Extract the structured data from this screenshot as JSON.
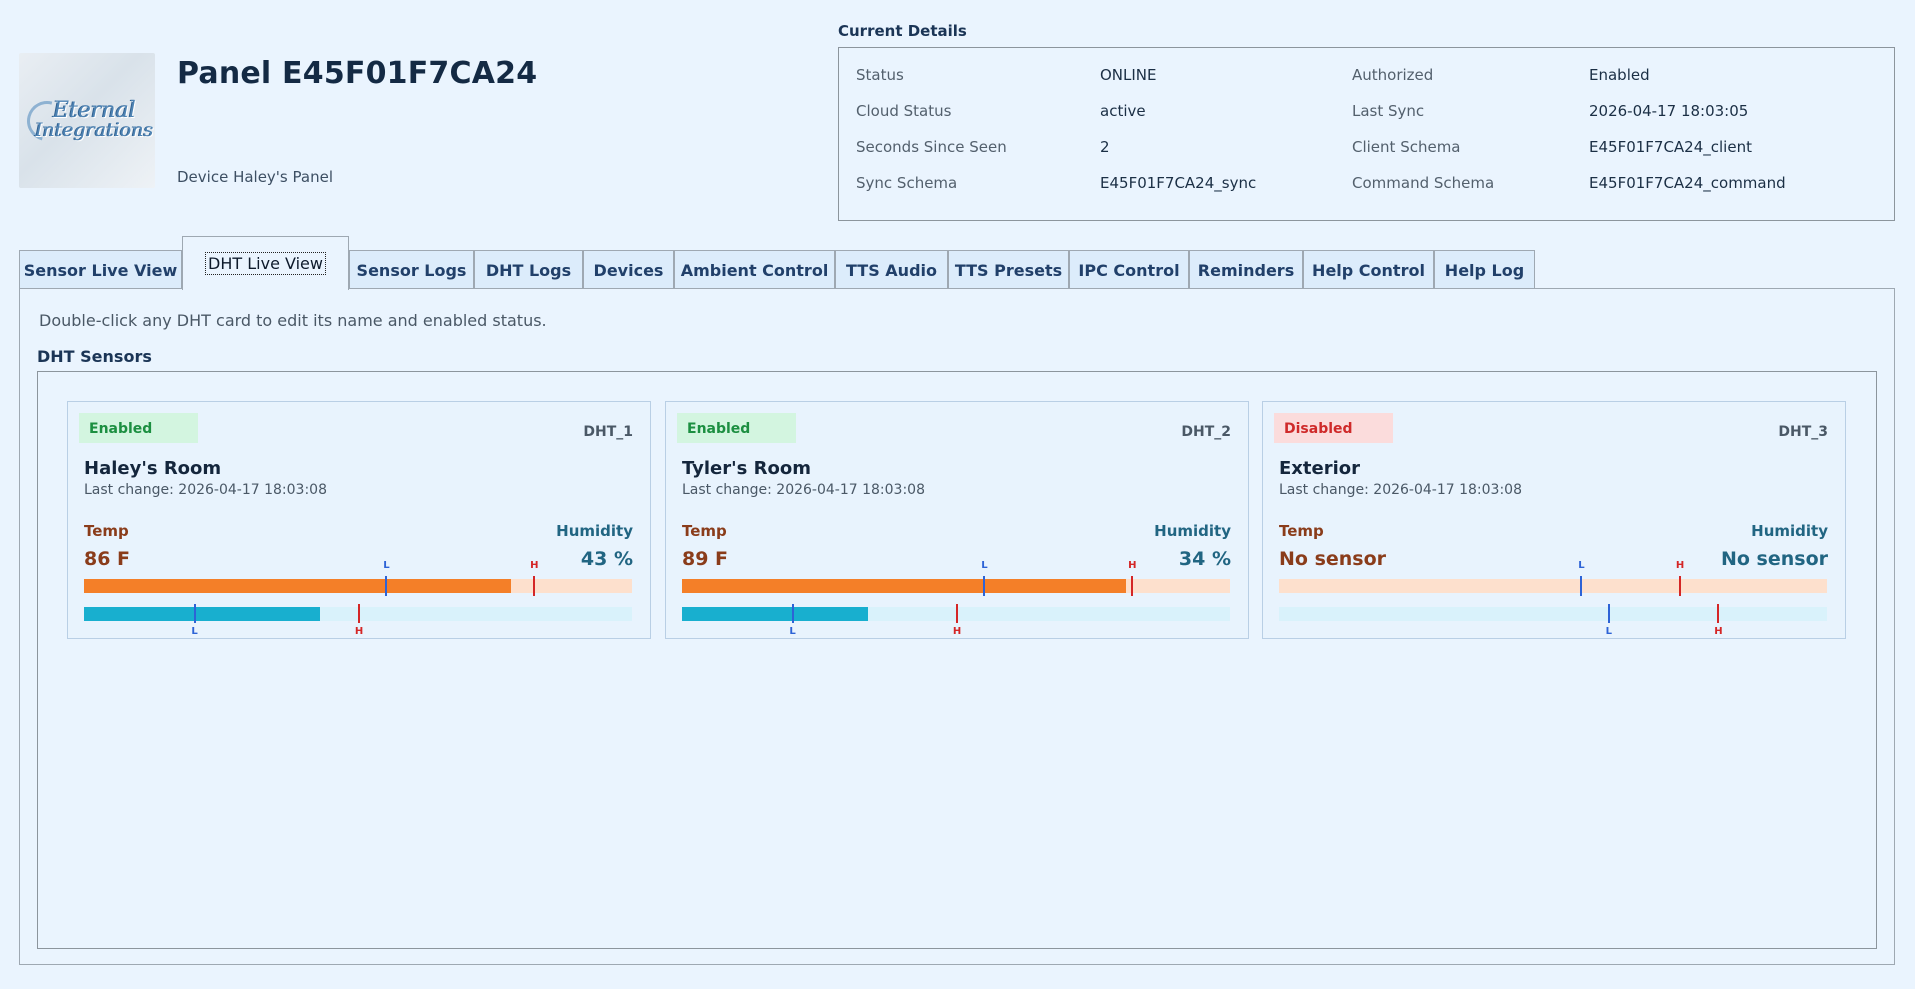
{
  "logo": {
    "line1": "Eternal",
    "line2": "Integrations"
  },
  "panel": {
    "title": "Panel E45F01F7CA24",
    "subtitle": "Device Haley's Panel"
  },
  "details": {
    "legend": "Current Details",
    "rows": [
      {
        "label": "Status",
        "value": "ONLINE",
        "label2": "Authorized",
        "value2": "Enabled"
      },
      {
        "label": "Cloud Status",
        "value": "active",
        "label2": "Last Sync",
        "value2": "2026-04-17 18:03:05"
      },
      {
        "label": "Seconds Since Seen",
        "value": "2",
        "label2": "Client Schema",
        "value2": "E45F01F7CA24_client"
      },
      {
        "label": "Sync Schema",
        "value": "E45F01F7CA24_sync",
        "label2": "Command Schema",
        "value2": "E45F01F7CA24_command"
      }
    ]
  },
  "tabs": [
    "Sensor Live View",
    "DHT Live View",
    "Sensor Logs",
    "DHT Logs",
    "Devices",
    "Ambient Control",
    "TTS Audio",
    "TTS Presets",
    "IPC Control",
    "Reminders",
    "Help Control",
    "Help Log"
  ],
  "active_tab": "DHT Live View",
  "hint": "Double-click any DHT card to edit its name and enabled status.",
  "sensors_legend": "DHT Sensors",
  "labels": {
    "temp": "Temp",
    "humidity": "Humidity",
    "low": "L",
    "high": "H"
  },
  "colors": {
    "enabled": "#1c8f41",
    "disabled": "#cf2a2a",
    "temp_bar": "#f47f28",
    "humidity_bar": "#18afcf",
    "low_marker": "#2d63d6",
    "high_marker": "#d42626"
  },
  "cards": [
    {
      "status": "Enabled",
      "id": "DHT_1",
      "name": "Haley's Room",
      "last_change": "Last change: 2026-04-17 18:03:08",
      "temp_text": "86 F",
      "humidity_text": "43 %",
      "temp_fill": 0.78,
      "temp_low": 0.55,
      "temp_high": 0.82,
      "hum_fill": 0.43,
      "hum_low": 0.2,
      "hum_high": 0.5
    },
    {
      "status": "Enabled",
      "id": "DHT_2",
      "name": "Tyler's Room",
      "last_change": "Last change: 2026-04-17 18:03:08",
      "temp_text": "89 F",
      "humidity_text": "34 %",
      "temp_fill": 0.81,
      "temp_low": 0.55,
      "temp_high": 0.82,
      "hum_fill": 0.34,
      "hum_low": 0.2,
      "hum_high": 0.5
    },
    {
      "status": "Disabled",
      "id": "DHT_3",
      "name": "Exterior",
      "last_change": "Last change: 2026-04-17 18:03:08",
      "temp_text": "No sensor",
      "humidity_text": "No sensor",
      "temp_fill": 0,
      "temp_low": 0.55,
      "temp_high": 0.73,
      "hum_fill": 0,
      "hum_low": 0.6,
      "hum_high": 0.8
    }
  ]
}
